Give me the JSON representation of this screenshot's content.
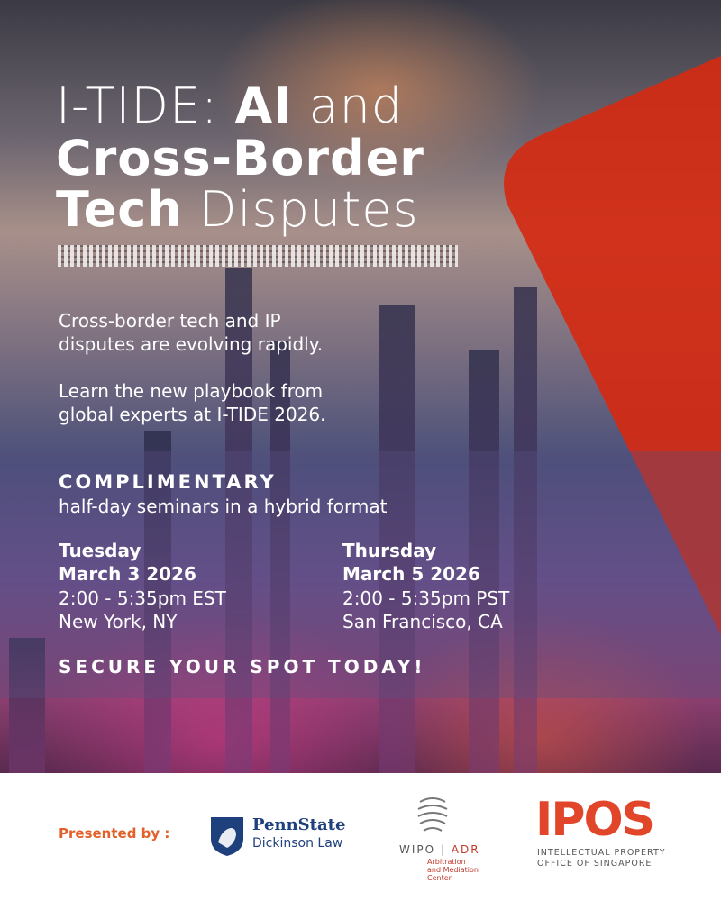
{
  "poster": {
    "title": {
      "line1_light": "I-TIDE: ",
      "line1_bold": "AI",
      "line1_end": " and",
      "line2": "Cross-Border",
      "line3_bold": "Tech",
      "line3_light": " Disputes"
    },
    "intro": [
      [
        "Cross-border tech and IP",
        "disputes are evolving rapidly."
      ],
      [
        "Learn the new playbook from",
        "global experts at I-TIDE 2026."
      ]
    ],
    "offer": {
      "headline": "COMPLIMENTARY",
      "subline": "half-day seminars in a hybrid format"
    },
    "events": [
      {
        "day": "Tuesday",
        "date": "March 3 2026",
        "time": "2:00 - 5:35pm EST",
        "place": "New York, NY"
      },
      {
        "day": "Thursday",
        "date": "March 5 2026",
        "time": "2:00 - 5:35pm PST",
        "place": "San Francisco, CA"
      }
    ],
    "cta": "SECURE YOUR SPOT TODAY!"
  },
  "footer": {
    "presented_by": "Presented by :",
    "pennstate": {
      "name": "PennState",
      "school": "Dickinson Law"
    },
    "wipo": {
      "name": "WIPO",
      "unit": "ADR",
      "lines": [
        "Arbitration",
        "and Mediation",
        "Center"
      ]
    },
    "ipos": {
      "name": "IPOS",
      "lines": [
        "INTELLECTUAL PROPERTY",
        "OFFICE OF SINGAPORE"
      ]
    }
  }
}
